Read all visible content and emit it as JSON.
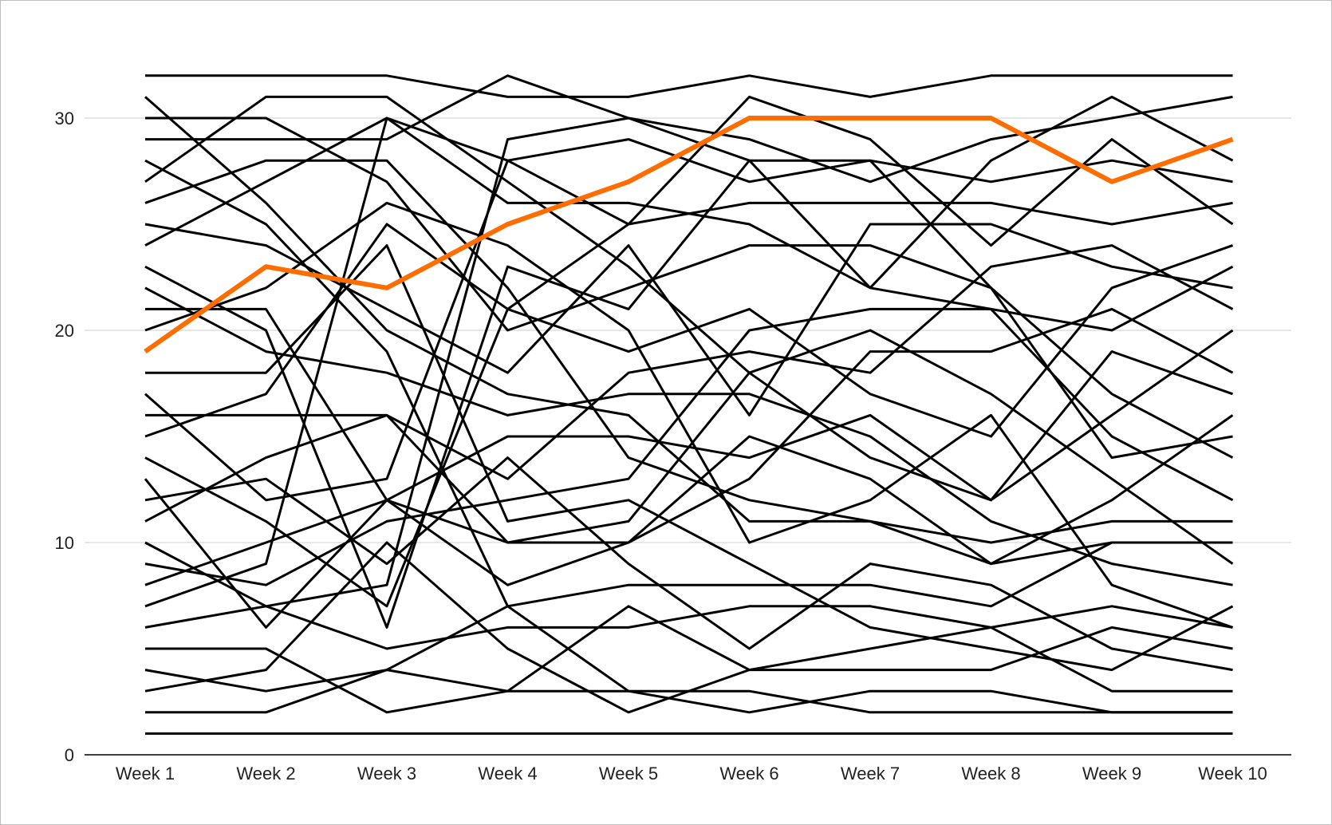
{
  "chart_data": {
    "type": "line",
    "title": "",
    "xlabel": "",
    "ylabel": "",
    "x": [
      "Week 1",
      "Week 2",
      "Week 3",
      "Week 4",
      "Week 5",
      "Week 6",
      "Week 7",
      "Week 8",
      "Week 9",
      "Week 10"
    ],
    "ylim": [
      0,
      32
    ],
    "yticks": [
      0,
      10,
      20,
      30
    ],
    "grid": true,
    "legend": "none",
    "highlight_color": "#ff6d01",
    "line_color": "#000000",
    "series": [
      {
        "values": [
          32,
          32,
          32,
          31,
          31,
          32,
          31,
          32,
          32,
          32
        ]
      },
      {
        "values": [
          31,
          26,
          20,
          17,
          16,
          11,
          11,
          10,
          11,
          11
        ]
      },
      {
        "values": [
          30,
          30,
          27,
          20,
          22,
          24,
          24,
          22,
          17,
          14
        ]
      },
      {
        "values": [
          29,
          29,
          29,
          32,
          30,
          29,
          27,
          29,
          30,
          31
        ]
      },
      {
        "values": [
          28,
          25,
          19,
          7,
          3,
          2,
          3,
          3,
          2,
          2
        ]
      },
      {
        "values": [
          27,
          31,
          31,
          27,
          23,
          18,
          14,
          12,
          16,
          20
        ]
      },
      {
        "values": [
          26,
          28,
          28,
          22,
          14,
          12,
          11,
          9,
          10,
          10
        ]
      },
      {
        "values": [
          25,
          24,
          21,
          18,
          24,
          16,
          25,
          25,
          23,
          22
        ]
      },
      {
        "values": [
          24,
          27,
          30,
          26,
          26,
          25,
          22,
          28,
          31,
          28
        ]
      },
      {
        "values": [
          23,
          20,
          6,
          23,
          21,
          28,
          28,
          27,
          28,
          27
        ]
      },
      {
        "values": [
          22,
          19,
          18,
          16,
          17,
          17,
          15,
          11,
          9,
          8
        ]
      },
      {
        "values": [
          21,
          21,
          12,
          10,
          10,
          15,
          13,
          9,
          12,
          16
        ]
      },
      {
        "values": [
          20,
          22,
          26,
          24,
          20,
          10,
          12,
          16,
          8,
          6
        ]
      },
      {
        "values": [
          19,
          23,
          22,
          25,
          27,
          30,
          30,
          30,
          27,
          29
        ],
        "highlight": true
      },
      {
        "values": [
          18,
          18,
          24,
          11,
          12,
          9,
          6,
          5,
          4,
          7
        ]
      },
      {
        "values": [
          17,
          12,
          13,
          28,
          25,
          31,
          29,
          24,
          29,
          25
        ]
      },
      {
        "values": [
          16,
          16,
          16,
          13,
          18,
          19,
          18,
          23,
          24,
          21
        ]
      },
      {
        "values": [
          15,
          17,
          25,
          21,
          19,
          21,
          17,
          15,
          22,
          24
        ]
      },
      {
        "values": [
          14,
          11,
          7,
          21,
          25,
          26,
          26,
          26,
          25,
          26
        ]
      },
      {
        "values": [
          13,
          6,
          12,
          15,
          15,
          14,
          16,
          12,
          19,
          17
        ]
      },
      {
        "values": [
          12,
          13,
          9,
          14,
          9,
          5,
          9,
          8,
          5,
          4
        ]
      },
      {
        "values": [
          11,
          14,
          16,
          10,
          11,
          18,
          20,
          17,
          13,
          9
        ]
      },
      {
        "values": [
          10,
          7,
          8,
          29,
          30,
          28,
          22,
          21,
          20,
          23
        ]
      },
      {
        "values": [
          9,
          8,
          11,
          12,
          13,
          20,
          21,
          21,
          15,
          12
        ]
      },
      {
        "values": [
          8,
          10,
          12,
          8,
          10,
          13,
          19,
          19,
          21,
          18
        ]
      },
      {
        "values": [
          7,
          9,
          30,
          28,
          29,
          27,
          28,
          22,
          14,
          15
        ]
      },
      {
        "values": [
          6,
          7,
          5,
          6,
          6,
          7,
          7,
          6,
          3,
          3
        ]
      },
      {
        "values": [
          5,
          5,
          2,
          3,
          7,
          4,
          5,
          6,
          7,
          6
        ]
      },
      {
        "values": [
          4,
          3,
          4,
          3,
          3,
          3,
          2,
          2,
          2,
          2
        ]
      },
      {
        "values": [
          3,
          4,
          10,
          5,
          2,
          4,
          4,
          4,
          6,
          5
        ]
      },
      {
        "values": [
          2,
          2,
          4,
          7,
          8,
          8,
          8,
          7,
          10,
          10
        ]
      },
      {
        "values": [
          1,
          1,
          1,
          1,
          1,
          1,
          1,
          1,
          1,
          1
        ]
      }
    ]
  }
}
